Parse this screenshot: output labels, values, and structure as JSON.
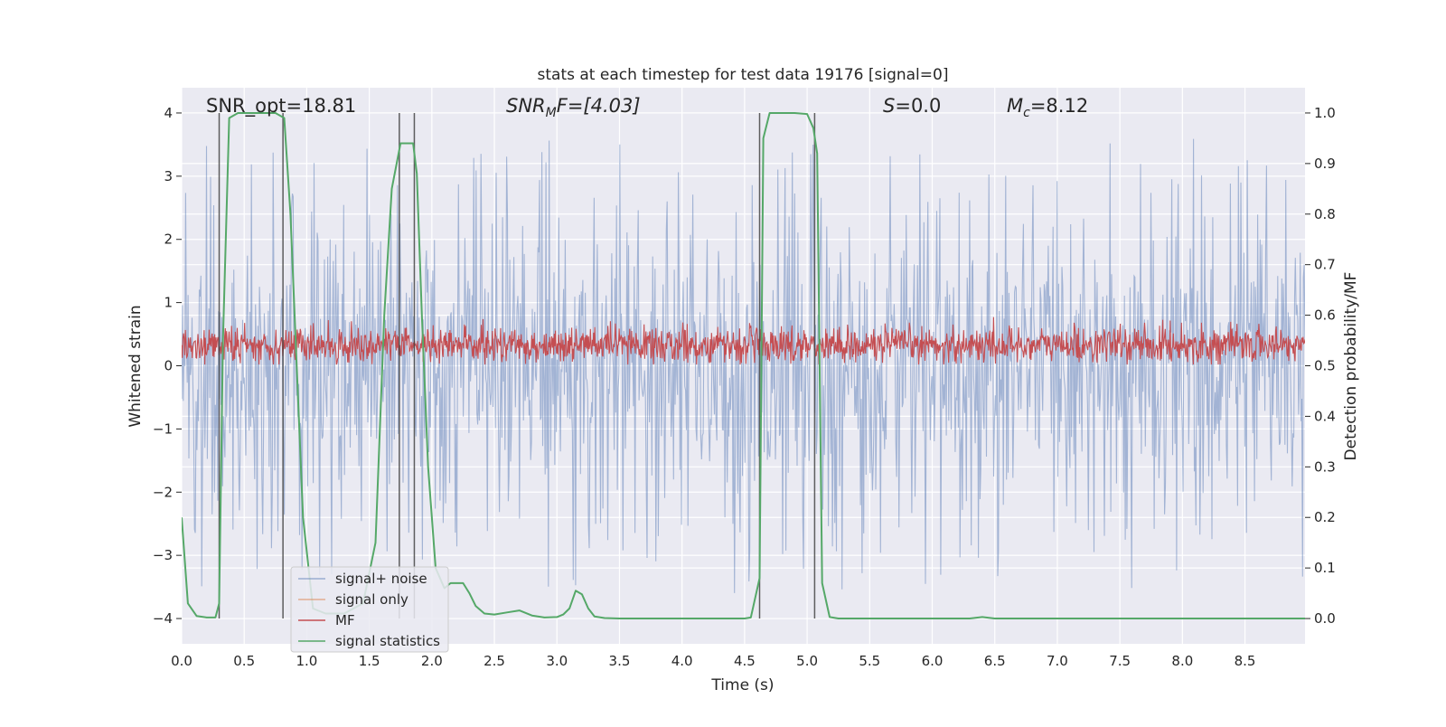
{
  "chart_data": {
    "type": "line",
    "title": "stats at each timestep for test data 19176 [signal=0]",
    "xlabel": "Time (s)",
    "ylabel_left": "Whitened strain",
    "ylabel_right": "Detection probability/MF",
    "xlim": [
      0,
      8.98
    ],
    "ylim_left": [
      -4.4,
      4.4
    ],
    "ylim_right": [
      -0.05,
      1.05
    ],
    "x_ticks": [
      "0.0",
      "0.5",
      "1.0",
      "1.5",
      "2.0",
      "2.5",
      "3.0",
      "3.5",
      "4.0",
      "4.5",
      "5.0",
      "5.5",
      "6.0",
      "6.5",
      "7.0",
      "7.5",
      "8.0",
      "8.5"
    ],
    "y_ticks_left": [
      "4",
      "3",
      "2",
      "1",
      "0",
      "−1",
      "−2",
      "−3",
      "−4"
    ],
    "y_ticks_right": [
      "1.0",
      "0.9",
      "0.8",
      "0.7",
      "0.6",
      "0.5",
      "0.4",
      "0.3",
      "0.2",
      "0.1",
      "0.0"
    ],
    "annotations": {
      "snr_opt": "SNR_opt=18.81",
      "snr_mf_main": "SNR",
      "snr_mf_sub": "M",
      "snr_mf_rest": "F=[4.03]",
      "s_var": "S",
      "s_rest": "=0.0",
      "mc_var": "M",
      "mc_sub": "c",
      "mc_rest": "=8.12"
    },
    "series": [
      {
        "name": "signal+ noise",
        "color": "#4c72b0",
        "description": "whitened strain, noise band roughly ±2 with spikes to ±3.6"
      },
      {
        "name": "signal only",
        "color": "#dd8452",
        "values": []
      },
      {
        "name": "MF",
        "color": "#c44e52",
        "description": "matched-filter output fluctuating between about 0.0 and 0.75 (strain units)"
      },
      {
        "name": "signal statistics",
        "color": "#55a868",
        "axis": "right",
        "x": [
          0.0,
          0.05,
          0.12,
          0.2,
          0.27,
          0.3,
          0.33,
          0.38,
          0.45,
          0.55,
          0.65,
          0.75,
          0.82,
          0.87,
          0.92,
          0.97,
          1.05,
          1.15,
          1.3,
          1.45,
          1.55,
          1.62,
          1.68,
          1.75,
          1.8,
          1.85,
          1.88,
          1.92,
          1.97,
          2.03,
          2.1,
          2.15,
          2.2,
          2.25,
          2.3,
          2.35,
          2.42,
          2.5,
          2.6,
          2.7,
          2.8,
          2.9,
          3.0,
          3.05,
          3.1,
          3.15,
          3.2,
          3.25,
          3.3,
          3.38,
          3.5,
          4.0,
          4.5,
          4.55,
          4.62,
          4.65,
          4.7,
          4.8,
          4.9,
          5.0,
          5.05,
          5.08,
          5.12,
          5.18,
          5.25,
          5.5,
          6.0,
          6.3,
          6.4,
          6.5,
          7.0,
          8.0,
          8.98
        ],
        "y": [
          0.2,
          0.03,
          0.005,
          0.002,
          0.002,
          0.03,
          0.55,
          0.99,
          1.0,
          1.0,
          1.0,
          1.0,
          0.99,
          0.8,
          0.5,
          0.2,
          0.02,
          0.01,
          0.01,
          0.03,
          0.15,
          0.6,
          0.85,
          0.94,
          0.94,
          0.94,
          0.88,
          0.6,
          0.3,
          0.1,
          0.06,
          0.07,
          0.07,
          0.07,
          0.05,
          0.025,
          0.01,
          0.008,
          0.012,
          0.016,
          0.006,
          0.002,
          0.003,
          0.008,
          0.02,
          0.055,
          0.048,
          0.02,
          0.004,
          0.001,
          0.0,
          0.0,
          0.0,
          0.002,
          0.08,
          0.95,
          1.0,
          1.0,
          1.0,
          0.998,
          0.97,
          0.92,
          0.07,
          0.003,
          0.0,
          0.0,
          0.0,
          0.0,
          0.003,
          0.0,
          0.0,
          0.0,
          0.0
        ]
      }
    ],
    "vertical_lines_x": [
      0.3,
      0.81,
      1.74,
      1.86,
      4.62,
      5.06
    ],
    "legend_location": "lower-left"
  }
}
